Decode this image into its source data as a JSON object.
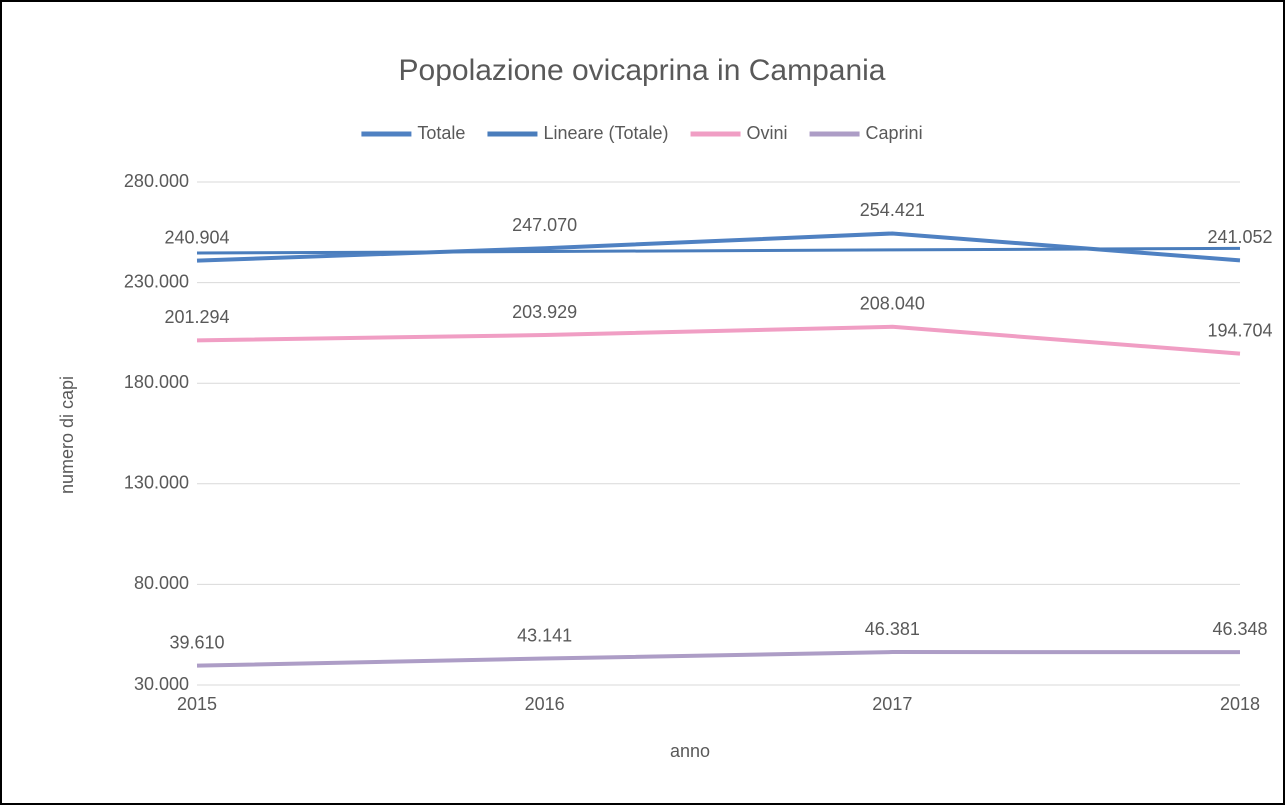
{
  "chart_data": {
    "type": "line",
    "title": "Popolazione ovicaprina in Campania",
    "x_label": "anno",
    "y_label": "numero di capi",
    "categories": [
      "2015",
      "2016",
      "2017",
      "2018"
    ],
    "series": [
      {
        "name": "Totale",
        "color": "#4f81c2",
        "values": [
          240904,
          247070,
          254421,
          241052
        ],
        "value_labels": [
          "240.904",
          "247.070",
          "254.421",
          "241.052"
        ]
      },
      {
        "name": "Lineare (Totale)",
        "color": "#4a7dbc",
        "values": [
          244692.5,
          245472,
          246251.5,
          247031
        ]
      },
      {
        "name": "Ovini",
        "color": "#f09ec4",
        "values": [
          201294,
          203929,
          208040,
          194704
        ],
        "value_labels": [
          "201.294",
          "203.929",
          "208.040",
          "194.704"
        ]
      },
      {
        "name": "Caprini",
        "color": "#ad9dc6",
        "values": [
          39610,
          43141,
          46381,
          46348
        ],
        "value_labels": [
          "39.610",
          "43.141",
          "46.381",
          "46.348"
        ]
      }
    ],
    "ylim": [
      30000,
      280000
    ],
    "yticks": [
      {
        "value": 30000,
        "label": "30.000"
      },
      {
        "value": 80000,
        "label": "80.000"
      },
      {
        "value": 130000,
        "label": "130.000"
      },
      {
        "value": 180000,
        "label": "180.000"
      },
      {
        "value": 230000,
        "label": "230.000"
      },
      {
        "value": 280000,
        "label": "280.000"
      }
    ],
    "grid": true,
    "legend": "top"
  }
}
